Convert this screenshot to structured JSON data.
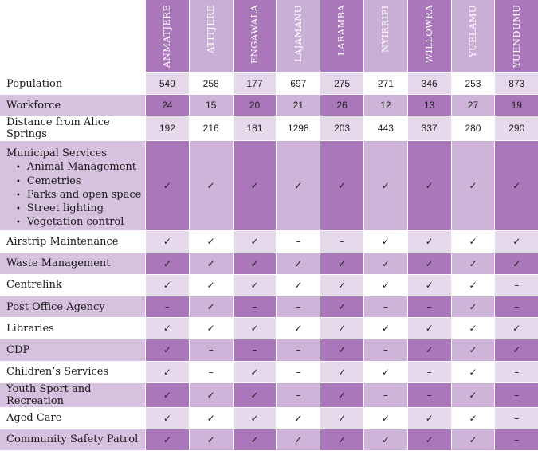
{
  "towns": [
    "ANMATJERE",
    "ATITJERE",
    "ENGAWALA",
    "LAJAMANU",
    "LARAMBA",
    "NYIRRIPI",
    "WILLOWRA",
    "YUELAMU",
    "YUENDUMU"
  ],
  "colors": {
    "header_odd": "#a977ba",
    "header_even": "#c9afd5",
    "row_shaded_dark": "#a977ba",
    "row_shaded_light": "#cdb4d8",
    "row_shaded_label": "#d6c1df",
    "row_white_tint": "#e6d9ec"
  },
  "rows": [
    {
      "label": "Population",
      "kind": "num",
      "values": [
        "549",
        "258",
        "177",
        "697",
        "275",
        "271",
        "346",
        "253",
        "873"
      ]
    },
    {
      "label": "Workforce",
      "kind": "num",
      "values": [
        "24",
        "15",
        "20",
        "21",
        "26",
        "12",
        "13",
        "27",
        "19"
      ]
    },
    {
      "label": "Distance from Alice Springs",
      "kind": "num",
      "values": [
        "192",
        "216",
        "181",
        "1298",
        "203",
        "443",
        "337",
        "280",
        "290"
      ]
    },
    {
      "label": "Municipal Services",
      "kind": "mark",
      "sub": [
        "Animal Management",
        "Cemetries",
        "Parks and open space",
        "Street lighting",
        "Vegetation control"
      ],
      "values": [
        "✓",
        "✓",
        "✓",
        "✓",
        "✓",
        "✓",
        "✓",
        "✓",
        "✓"
      ]
    },
    {
      "label": "Airstrip Maintenance",
      "kind": "mark",
      "values": [
        "✓",
        "✓",
        "✓",
        "–",
        "–",
        "✓",
        "✓",
        "✓",
        "✓"
      ]
    },
    {
      "label": "Waste Management",
      "kind": "mark",
      "values": [
        "✓",
        "✓",
        "✓",
        "✓",
        "✓",
        "✓",
        "✓",
        "✓",
        "✓"
      ]
    },
    {
      "label": "Centrelink",
      "kind": "mark",
      "values": [
        "✓",
        "✓",
        "✓",
        "✓",
        "✓",
        "✓",
        "✓",
        "✓",
        "–"
      ]
    },
    {
      "label": "Post Office Agency",
      "kind": "mark",
      "values": [
        "–",
        "✓",
        "–",
        "–",
        "✓",
        "–",
        "–",
        "✓",
        "–"
      ]
    },
    {
      "label": "Libraries",
      "kind": "mark",
      "values": [
        "✓",
        "✓",
        "✓",
        "✓",
        "✓",
        "✓",
        "✓",
        "✓",
        "✓"
      ]
    },
    {
      "label": "CDP",
      "kind": "mark",
      "values": [
        "✓",
        "–",
        "–",
        "–",
        "✓",
        "–",
        "✓",
        "✓",
        "✓"
      ]
    },
    {
      "label": "Children’s Services",
      "kind": "mark",
      "values": [
        "✓",
        "–",
        "✓",
        "–",
        "✓",
        "✓",
        "–",
        "✓",
        "–"
      ]
    },
    {
      "label": "Youth Sport and Recreation",
      "kind": "mark",
      "values": [
        "✓",
        "✓",
        "✓",
        "–",
        "✓",
        "–",
        "–",
        "✓",
        "–"
      ]
    },
    {
      "label": "Aged Care",
      "kind": "mark",
      "values": [
        "✓",
        "✓",
        "✓",
        "✓",
        "✓",
        "✓",
        "✓",
        "✓",
        "–"
      ]
    },
    {
      "label": "Community Safety Patrol",
      "kind": "mark",
      "values": [
        "✓",
        "✓",
        "✓",
        "✓",
        "✓",
        "✓",
        "✓",
        "✓",
        "–"
      ]
    }
  ]
}
